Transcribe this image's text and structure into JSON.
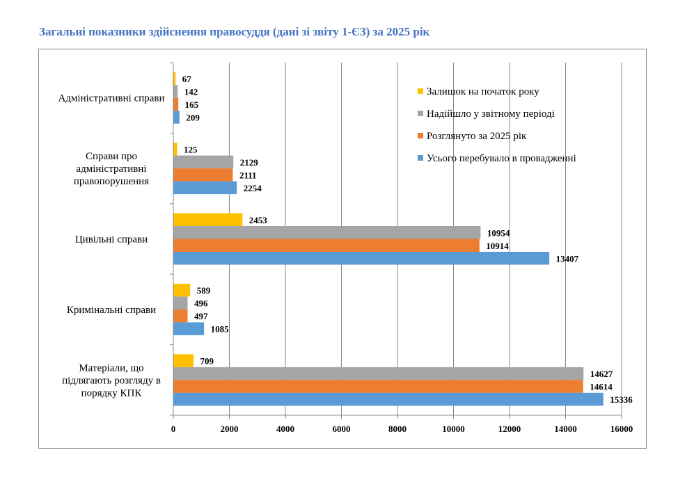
{
  "chart_data": {
    "type": "bar",
    "orientation": "horizontal",
    "title": "Загальні показники здійснення правосуддя (дані зі звіту 1-ЄЗ) за 2025 рік",
    "xlabel": "",
    "ylabel": "",
    "xlim": [
      0,
      16000
    ],
    "xticks": [
      0,
      2000,
      4000,
      6000,
      8000,
      10000,
      12000,
      14000,
      16000
    ],
    "grid": true,
    "legend_position": "top-right",
    "categories": [
      "Адміністративні справи",
      "Справи про адміністративні правопорушення",
      "Цивільні справи",
      "Кримінальні справи",
      "Матеріали, що підлягають розгляду в порядку КПК"
    ],
    "category_lines": [
      [
        "Адміністративні  справи"
      ],
      [
        "Справи  про",
        "адміністративні",
        "правопорушення"
      ],
      [
        "Цивільні  справи"
      ],
      [
        "Кримінальні  справи"
      ],
      [
        "Матеріали,  що",
        "підлягають розгляду в",
        "порядку КПК"
      ]
    ],
    "series": [
      {
        "name": "Залишок на початок року",
        "color": "#ffc000",
        "values": [
          67,
          125,
          2453,
          589,
          709
        ]
      },
      {
        "name": "Надійшло у звітному періоді",
        "color": "#a5a5a5",
        "values": [
          142,
          2129,
          10954,
          496,
          14627
        ]
      },
      {
        "name": "Розглянуто за 2025 рік",
        "color": "#ed7d31",
        "values": [
          165,
          2111,
          10914,
          497,
          14614
        ]
      },
      {
        "name": "Усього перебувало в провадженні",
        "color": "#5b9bd5",
        "values": [
          209,
          2254,
          13407,
          1085,
          15336
        ]
      }
    ]
  }
}
